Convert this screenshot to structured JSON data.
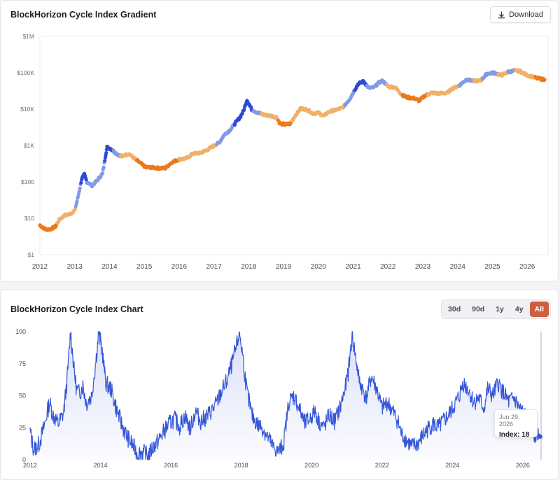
{
  "gradient_card": {
    "title": "BlockHorizon Cycle Index Gradient",
    "download_label": "Download",
    "download_icon": "download-icon"
  },
  "index_card": {
    "title": "BlockHorizon Cycle Index Chart",
    "ranges": [
      "30d",
      "90d",
      "1y",
      "4y",
      "All"
    ],
    "active_range": "All",
    "tooltip": {
      "date": "Jun 29, 2026",
      "label": "Index: 18"
    }
  },
  "colors": {
    "accent": "#cd5f3f",
    "line": "#3556d8",
    "deep_blue": "#2c48d6",
    "light_blue": "#7f9be8",
    "light_orange": "#f1b06a",
    "deep_orange": "#ea7a1c"
  },
  "chart_data": [
    {
      "type": "scatter",
      "title": "BlockHorizon Cycle Index Gradient",
      "y_scale": "log",
      "ylim": [
        1,
        1000000
      ],
      "y_ticks": [
        {
          "value": 1,
          "label": "$1"
        },
        {
          "value": 10,
          "label": "$10"
        },
        {
          "value": 100,
          "label": "$100"
        },
        {
          "value": 1000,
          "label": "$1K"
        },
        {
          "value": 10000,
          "label": "$10K"
        },
        {
          "value": 100000,
          "label": "$100K"
        },
        {
          "value": 1000000,
          "label": "$1M"
        }
      ],
      "x_ticks": [
        "2012",
        "2013",
        "2014",
        "2015",
        "2016",
        "2017",
        "2018",
        "2019",
        "2020",
        "2021",
        "2022",
        "2023",
        "2024",
        "2025",
        "2026"
      ],
      "xlim": [
        2012.0,
        2026.6
      ],
      "grid": false,
      "points": [
        [
          2012.0,
          6.5,
          15
        ],
        [
          2012.15,
          5,
          10
        ],
        [
          2012.3,
          5,
          15
        ],
        [
          2012.45,
          6,
          20
        ],
        [
          2012.55,
          9,
          30
        ],
        [
          2012.7,
          12,
          35
        ],
        [
          2012.85,
          13,
          40
        ],
        [
          2013.0,
          16,
          45
        ],
        [
          2013.1,
          40,
          60
        ],
        [
          2013.2,
          120,
          80
        ],
        [
          2013.28,
          160,
          95
        ],
        [
          2013.35,
          100,
          70
        ],
        [
          2013.5,
          80,
          55
        ],
        [
          2013.65,
          110,
          60
        ],
        [
          2013.8,
          170,
          65
        ],
        [
          2013.88,
          500,
          80
        ],
        [
          2013.93,
          900,
          98
        ],
        [
          2014.05,
          800,
          85
        ],
        [
          2014.2,
          600,
          60
        ],
        [
          2014.35,
          500,
          45
        ],
        [
          2014.55,
          600,
          40
        ],
        [
          2014.7,
          450,
          30
        ],
        [
          2014.85,
          350,
          20
        ],
        [
          2015.05,
          250,
          10
        ],
        [
          2015.2,
          250,
          15
        ],
        [
          2015.4,
          240,
          15
        ],
        [
          2015.6,
          240,
          10
        ],
        [
          2015.8,
          350,
          20
        ],
        [
          2016.0,
          420,
          25
        ],
        [
          2016.2,
          440,
          25
        ],
        [
          2016.4,
          600,
          35
        ],
        [
          2016.6,
          620,
          30
        ],
        [
          2016.8,
          750,
          35
        ],
        [
          2017.0,
          1000,
          45
        ],
        [
          2017.15,
          1200,
          55
        ],
        [
          2017.3,
          2000,
          60
        ],
        [
          2017.45,
          2600,
          65
        ],
        [
          2017.6,
          4000,
          75
        ],
        [
          2017.75,
          6000,
          80
        ],
        [
          2017.85,
          9000,
          90
        ],
        [
          2017.95,
          18000,
          100
        ],
        [
          2018.08,
          10000,
          80
        ],
        [
          2018.25,
          8000,
          55
        ],
        [
          2018.45,
          7000,
          45
        ],
        [
          2018.65,
          6500,
          40
        ],
        [
          2018.8,
          6000,
          35
        ],
        [
          2018.9,
          4000,
          12
        ],
        [
          2019.05,
          3800,
          8
        ],
        [
          2019.2,
          4000,
          18
        ],
        [
          2019.35,
          7000,
          40
        ],
        [
          2019.5,
          10500,
          50
        ],
        [
          2019.7,
          9500,
          40
        ],
        [
          2019.85,
          7500,
          30
        ],
        [
          2020.0,
          8000,
          30
        ],
        [
          2020.15,
          6500,
          25
        ],
        [
          2020.3,
          8500,
          35
        ],
        [
          2020.5,
          9500,
          40
        ],
        [
          2020.7,
          11000,
          45
        ],
        [
          2020.9,
          19000,
          60
        ],
        [
          2021.05,
          35000,
          75
        ],
        [
          2021.15,
          50000,
          90
        ],
        [
          2021.3,
          58000,
          95
        ],
        [
          2021.45,
          38000,
          60
        ],
        [
          2021.6,
          40000,
          55
        ],
        [
          2021.75,
          55000,
          65
        ],
        [
          2021.85,
          60000,
          65
        ],
        [
          2022.0,
          42000,
          45
        ],
        [
          2022.2,
          40000,
          40
        ],
        [
          2022.4,
          25000,
          25
        ],
        [
          2022.55,
          21000,
          15
        ],
        [
          2022.75,
          20000,
          20
        ],
        [
          2022.9,
          17000,
          10
        ],
        [
          2023.05,
          23000,
          20
        ],
        [
          2023.25,
          28000,
          30
        ],
        [
          2023.45,
          27000,
          30
        ],
        [
          2023.7,
          28000,
          35
        ],
        [
          2023.85,
          37000,
          45
        ],
        [
          2024.05,
          45000,
          50
        ],
        [
          2024.25,
          65000,
          60
        ],
        [
          2024.45,
          60000,
          50
        ],
        [
          2024.65,
          60000,
          45
        ],
        [
          2024.85,
          95000,
          60
        ],
        [
          2025.05,
          100000,
          55
        ],
        [
          2025.25,
          85000,
          45
        ],
        [
          2025.45,
          105000,
          50
        ],
        [
          2025.65,
          115000,
          50
        ],
        [
          2025.8,
          110000,
          45
        ],
        [
          2025.95,
          90000,
          35
        ],
        [
          2026.1,
          80000,
          30
        ],
        [
          2026.3,
          70000,
          22
        ],
        [
          2026.5,
          65000,
          18
        ]
      ]
    },
    {
      "type": "area",
      "title": "BlockHorizon Cycle Index Chart",
      "ylim": [
        0,
        100
      ],
      "y_ticks": [
        0,
        25,
        50,
        75,
        100
      ],
      "x_ticks": [
        "2012",
        "2014",
        "2016",
        "2018",
        "2020",
        "2022",
        "2024",
        "2026"
      ],
      "xlim": [
        2012.0,
        2026.6
      ],
      "series": [
        {
          "x": [
            2012.0,
            2012.1,
            2012.25,
            2012.4,
            2012.55,
            2012.65,
            2012.8,
            2012.95,
            2013.05,
            2013.15,
            2013.25,
            2013.32,
            2013.4,
            2013.5,
            2013.6,
            2013.75,
            2013.88,
            2013.95,
            2014.05,
            2014.15,
            2014.3,
            2014.45,
            2014.6,
            2014.75,
            2014.9,
            2015.05,
            2015.2,
            2015.35,
            2015.5,
            2015.65,
            2015.8,
            2015.95,
            2016.1,
            2016.25,
            2016.4,
            2016.55,
            2016.7,
            2016.85,
            2017.0,
            2017.15,
            2017.3,
            2017.45,
            2017.6,
            2017.75,
            2017.88,
            2017.95,
            2018.05,
            2018.15,
            2018.3,
            2018.45,
            2018.6,
            2018.75,
            2018.9,
            2019.05,
            2019.2,
            2019.35,
            2019.5,
            2019.65,
            2019.8,
            2019.95,
            2020.1,
            2020.2,
            2020.35,
            2020.5,
            2020.65,
            2020.8,
            2020.95,
            2021.05,
            2021.15,
            2021.25,
            2021.35,
            2021.45,
            2021.55,
            2021.7,
            2021.85,
            2022.0,
            2022.15,
            2022.3,
            2022.45,
            2022.55,
            2022.7,
            2022.85,
            2023.0,
            2023.15,
            2023.3,
            2023.45,
            2023.6,
            2023.75,
            2023.9,
            2024.05,
            2024.2,
            2024.3,
            2024.45,
            2024.6,
            2024.75,
            2024.9,
            2025.0,
            2025.15,
            2025.3,
            2025.45,
            2025.6,
            2025.75,
            2025.9,
            2026.05,
            2026.2,
            2026.35,
            2026.45,
            2026.5
          ],
          "values": [
            22,
            8,
            12,
            26,
            45,
            35,
            28,
            36,
            62,
            100,
            70,
            55,
            52,
            58,
            44,
            50,
            80,
            100,
            85,
            60,
            55,
            40,
            28,
            18,
            12,
            5,
            6,
            3,
            10,
            15,
            22,
            28,
            32,
            26,
            34,
            24,
            38,
            30,
            33,
            38,
            44,
            54,
            62,
            76,
            90,
            100,
            80,
            55,
            35,
            28,
            25,
            18,
            10,
            6,
            12,
            45,
            50,
            40,
            28,
            32,
            38,
            30,
            25,
            35,
            30,
            40,
            55,
            70,
            98,
            80,
            62,
            55,
            48,
            65,
            55,
            40,
            45,
            38,
            30,
            20,
            15,
            10,
            12,
            18,
            24,
            28,
            25,
            30,
            35,
            42,
            50,
            60,
            55,
            45,
            48,
            40,
            55,
            50,
            60,
            52,
            45,
            48,
            40,
            35,
            25,
            20,
            22,
            18
          ]
        }
      ]
    }
  ]
}
